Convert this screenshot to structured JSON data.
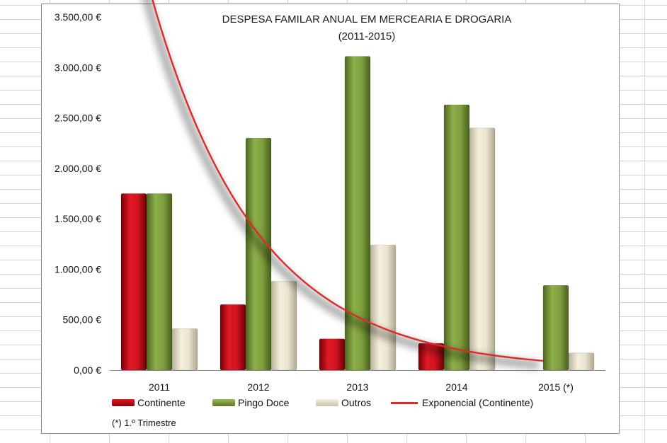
{
  "colors": {
    "continente": "#c8101c",
    "pingo_doce": "#7b9a3a",
    "outros": "#e8e2cc",
    "trend": "#e02a2a"
  },
  "chart_data": {
    "type": "bar",
    "title": "DESPESA FAMILAR ANUAL EM MERCEARIA  E DROGARIA",
    "subtitle": "(2011-2015)",
    "categories": [
      "2011",
      "2012",
      "2013",
      "2014",
      "2015 (*)"
    ],
    "series": [
      {
        "name": "Continente",
        "values": [
          1750,
          650,
          310,
          265,
          null
        ]
      },
      {
        "name": "Pingo Doce",
        "values": [
          1750,
          2300,
          3110,
          2630,
          840
        ]
      },
      {
        "name": "Outros",
        "values": [
          410,
          880,
          1240,
          2400,
          170
        ]
      }
    ],
    "trendline": {
      "name": "Exponencial (Continente)",
      "type": "exponential",
      "of_series": "Continente",
      "a": 3880,
      "b": -0.936
    },
    "ylim": [
      0,
      3500
    ],
    "yticks": [
      0,
      500,
      1000,
      1500,
      2000,
      2500,
      3000,
      3500
    ],
    "ytick_labels": [
      "0,00 €",
      "500,00 €",
      "1.000,00 €",
      "1.500,00 €",
      "2.000,00 €",
      "2.500,00 €",
      "3.000,00 €",
      "3.500,00 €"
    ],
    "xlabel": "",
    "ylabel": "",
    "legend_position": "bottom",
    "footnote": "(*) 1.º Trimestre"
  }
}
